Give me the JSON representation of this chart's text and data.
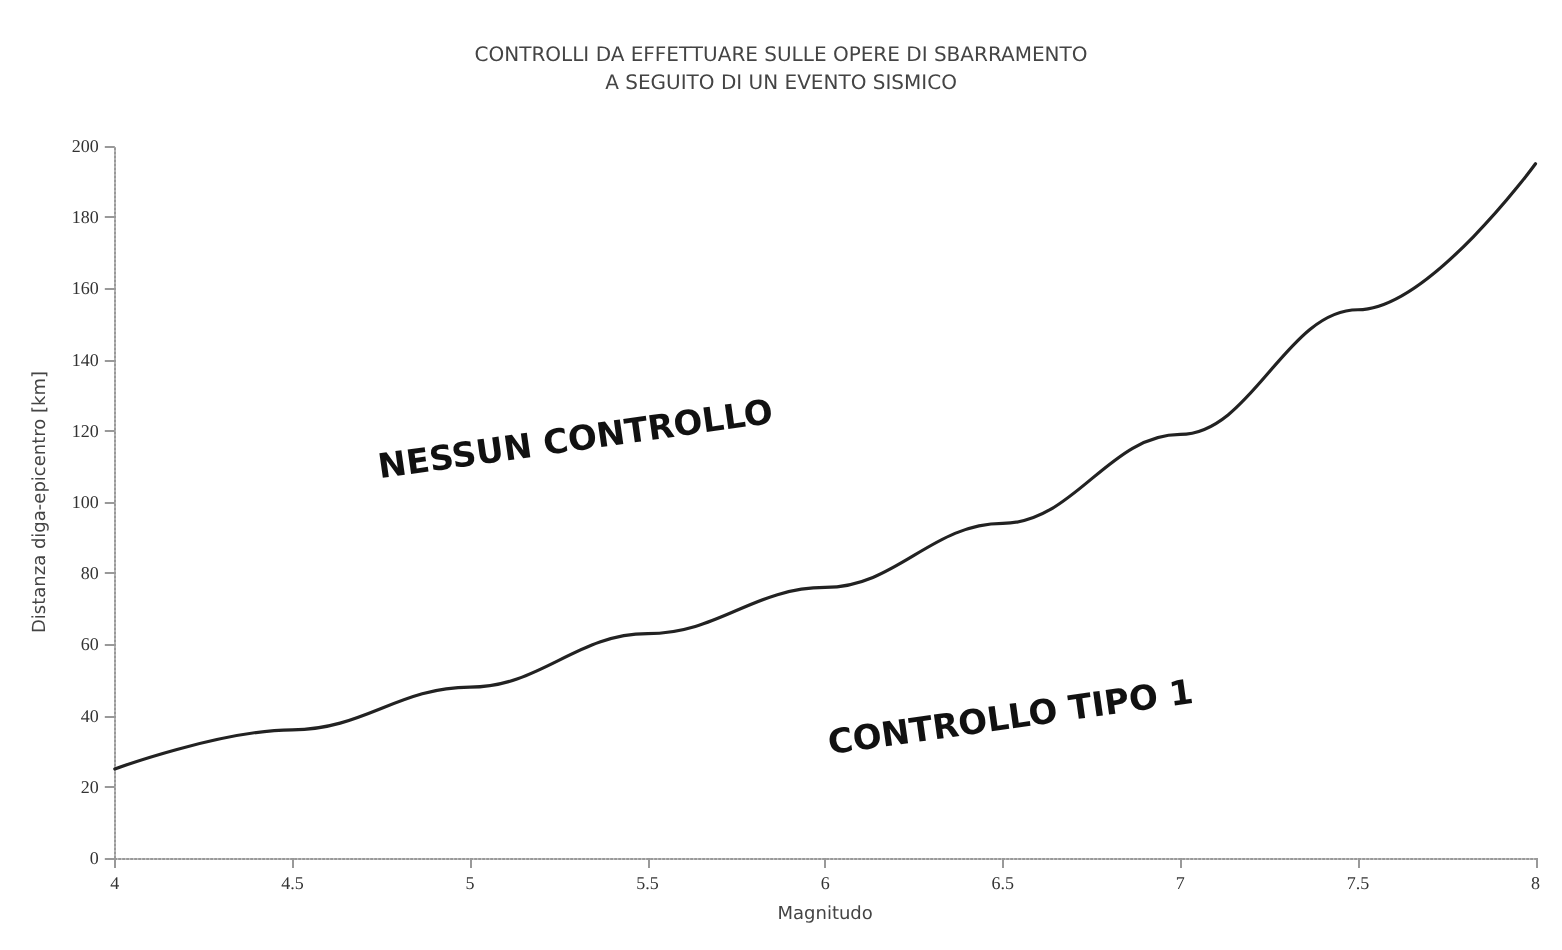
{
  "chart_data": {
    "type": "line",
    "title": "CONTROLLI DA EFFETTUARE SULLE OPERE DI SBARRAMENTO\nA SEGUITO DI UN EVENTO SISMICO",
    "xlabel": "Magnitudo",
    "ylabel": "Distanza diga-epicentro [km]",
    "x": [
      4,
      4.5,
      5,
      5.5,
      6,
      6.5,
      7,
      7.5,
      8
    ],
    "series": [
      {
        "color": "#222222",
        "values": [
          25,
          36,
          48,
          63,
          76,
          94,
          119,
          154,
          195
        ]
      }
    ],
    "xlim": [
      4,
      8
    ],
    "xticks": [
      4,
      4.5,
      5,
      5.5,
      6,
      6.5,
      7,
      7.5,
      8
    ],
    "ylim": [
      0,
      200
    ],
    "yticks": [
      0,
      20,
      40,
      60,
      80,
      100,
      120,
      140,
      160,
      180,
      200
    ],
    "grid": false,
    "marker": "none",
    "line_style": "solid",
    "annotations": [
      "NESSUN CONTROLLO",
      "CONTROLLO TIPO 1"
    ]
  }
}
